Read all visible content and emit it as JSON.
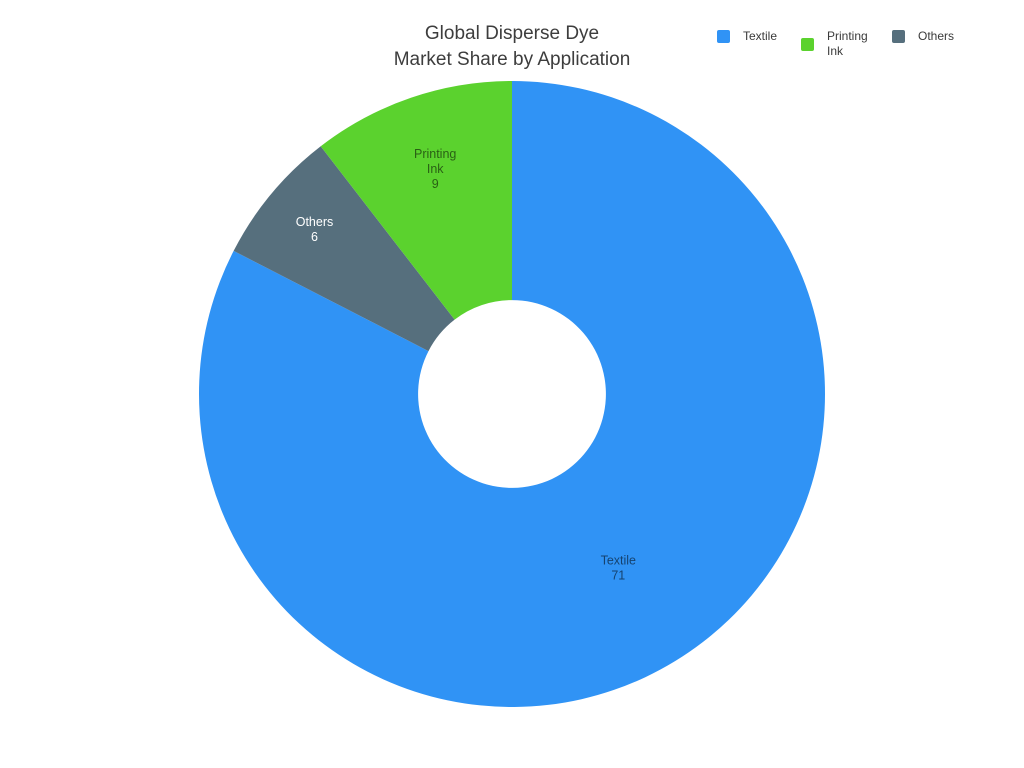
{
  "title": {
    "text": "Global Disperse Dye\nMarket Share by Application"
  },
  "legend": {
    "position": "top-right",
    "items": [
      {
        "label": "Textile",
        "color": "#3093F5"
      },
      {
        "label": "Printing Ink",
        "color": "#5BD22E"
      },
      {
        "label": "Others",
        "color": "#566F7D"
      }
    ]
  },
  "chart_data": {
    "type": "pie",
    "title": "Global Disperse Dye Market Share by Application",
    "donut": true,
    "hole_fraction": 0.3,
    "start_angle": "12-oclock",
    "draw_direction": "clockwise",
    "legend_position": "top-right",
    "categories": [
      "Textile",
      "Printing Ink",
      "Others"
    ],
    "values": [
      71,
      9,
      6
    ],
    "slices": [
      {
        "label": "Textile",
        "value": 71,
        "color": "#3093F5",
        "label_lines": [
          "Textile",
          "71"
        ],
        "label_color": "rgba(0,0,0,0.55)",
        "label_r_frac": 0.652
      },
      {
        "label": "Others",
        "value": 6,
        "color": "#566F7D",
        "label_lines": [
          "Others",
          "6"
        ],
        "label_color": "#ffffff",
        "label_r_frac": 0.821
      },
      {
        "label": "Printing Ink",
        "value": 9,
        "color": "#5BD22E",
        "label_lines": [
          "Printing",
          "Ink",
          "9"
        ],
        "label_color": "rgba(0,0,0,0.55)",
        "label_r_frac": 0.76
      }
    ]
  }
}
